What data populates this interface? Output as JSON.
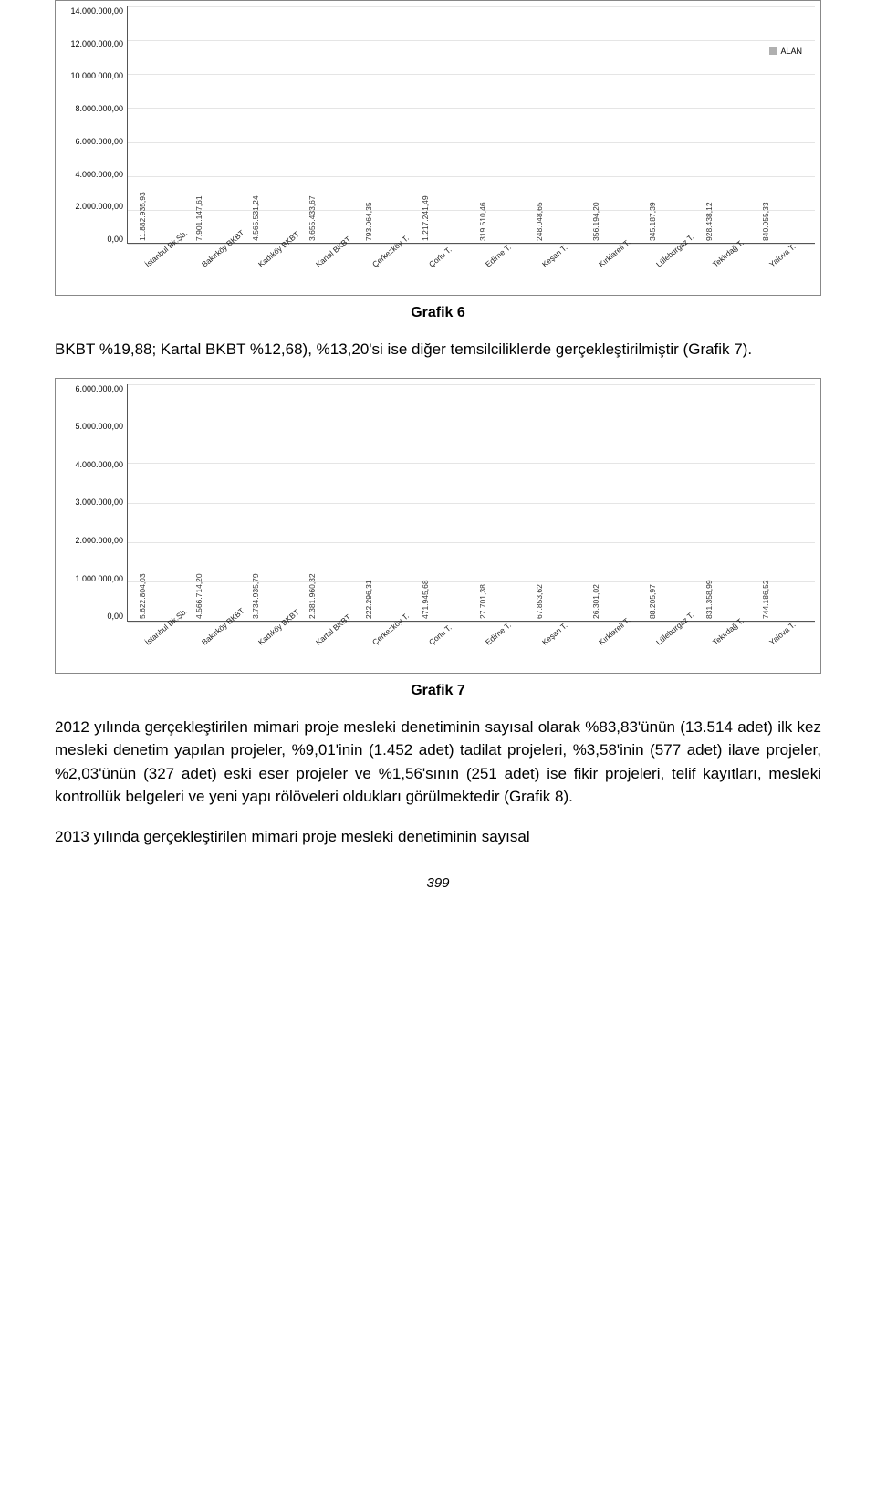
{
  "chart6": {
    "type": "bar",
    "legend": "ALAN",
    "bar_color": "#b0b0b0",
    "grid_color": "#e5e5e5",
    "ymax": 14000000,
    "ylabels": [
      "14.000.000,00",
      "12.000.000,00",
      "10.000.000,00",
      "8.000.000,00",
      "6.000.000,00",
      "4.000.000,00",
      "2.000.000,00",
      "0,00"
    ],
    "categories": [
      "İstanbul Bk.Şb.",
      "Bakırköy BKBT",
      "Kadıköy BKBT",
      "Kartal BKBT",
      "Çerkezköy T.",
      "Çorlu T.",
      "Edirne T.",
      "Keşan T.",
      "Kırklareli T.",
      "Lüleburgaz T.",
      "Tekirdağ T.",
      "Yalova T."
    ],
    "values": [
      11882935.93,
      7901147.61,
      4565531.24,
      3655433.67,
      793064.35,
      1217241.49,
      319510.46,
      248048.65,
      356194.2,
      345187.39,
      928438.12,
      840055.33
    ],
    "value_labels": [
      "11.882.935,93",
      "7.901.147,61",
      "4.565.531,24",
      "3.655.433,67",
      "793.064,35",
      "1.217.241,49",
      "319.510,46",
      "248.048,65",
      "356.194,20",
      "345.187,39",
      "928.438,12",
      "840.055,33"
    ]
  },
  "chart7": {
    "type": "bar",
    "bar_color": "#b0b0b0",
    "grid_color": "#e5e5e5",
    "ymax": 6000000,
    "ylabels": [
      "6.000.000,00",
      "5.000.000,00",
      "4.000.000,00",
      "3.000.000,00",
      "2.000.000,00",
      "1.000.000,00",
      "0,00"
    ],
    "categories": [
      "İstanbul Bk.Şb.",
      "Bakırköy BKBT",
      "Kadıköy BKBT",
      "Kartal BKBT",
      "Çerkezköy T.",
      "Çorlu T.",
      "Edirne T.",
      "Keşan T.",
      "Kırklareli T.",
      "Lüleburgaz T.",
      "Tekirdağ T.",
      "Yalova T."
    ],
    "values": [
      5622804.03,
      4566714.2,
      3734935.79,
      2381960.32,
      222296.31,
      471945.68,
      27701.38,
      67853.62,
      26301.02,
      88205.97,
      831358.99,
      744186.52
    ],
    "value_labels": [
      "5.622.804,03",
      "4.566.714,20",
      "3.734.935,79",
      "2.381.960,32",
      "222.296,31",
      "471.945,68",
      "27.701,38",
      "67.853,62",
      "26.301,02",
      "88.205,97",
      "831.358,99",
      "744.186,52"
    ]
  },
  "caption6": "Grafik 6",
  "caption7": "Grafik 7",
  "para1": "BKBT %19,88; Kartal BKBT %12,68), %13,20'si ise diğer temsilciliklerde gerçekleştirilmiştir (Grafik 7).",
  "para2": "2012 yılında gerçekleştirilen mimari proje mesleki denetiminin sayısal olarak %83,83'ünün (13.514 adet) ilk kez mesleki denetim yapılan projeler, %9,01'inin (1.452 adet) tadilat projeleri, %3,58'inin (577 adet) ilave projeler, %2,03'ünün (327 adet) eski eser projeler ve %1,56'sının (251 adet) ise fikir projeleri, telif kayıtları, mesleki kontrollük belgeleri ve yeni yapı rölöveleri oldukları görülmektedir (Grafik 8).",
  "para3": "2013 yılında gerçekleştirilen mimari proje mesleki denetiminin sayısal",
  "page_number": "399"
}
